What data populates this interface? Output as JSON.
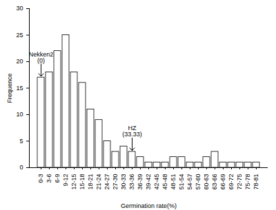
{
  "chart_data": {
    "type": "bar",
    "x_label": "Germination rate(%)",
    "y_label": "Frequence",
    "categories": [
      "0-3",
      "3-6",
      "6-9",
      "9-12",
      "12-15",
      "15-18",
      "18-21",
      "21-24",
      "24-27",
      "27-30",
      "30-33",
      "33-36",
      "36-39",
      "39-42",
      "42-45",
      "45-48",
      "48-51",
      "51-54",
      "54-57",
      "57-60",
      "60-63",
      "63-66",
      "66-69",
      "69-72",
      "72-75",
      "75-78",
      "78-81"
    ],
    "values": [
      17,
      18,
      22,
      25,
      18,
      16,
      11,
      9,
      5,
      3,
      4,
      3,
      2,
      1,
      1,
      1,
      2,
      2,
      1,
      1,
      2,
      3,
      1,
      1,
      1,
      1,
      1
    ],
    "color": "#ffffff",
    "ylim": [
      0,
      30
    ],
    "yticks": [
      0,
      5,
      10,
      15,
      20,
      25,
      30
    ],
    "grid": false,
    "annotations": [
      {
        "category": "0-3",
        "lines": [
          "Nekken2",
          "(0)"
        ]
      },
      {
        "category": "33-36",
        "lines": [
          "HZ",
          "(33.33)"
        ]
      }
    ]
  }
}
